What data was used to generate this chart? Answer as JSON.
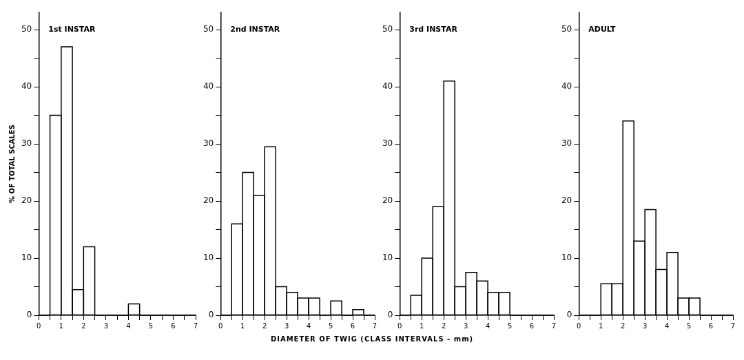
{
  "chart_data": [
    {
      "type": "histogram",
      "title": "1st INSTAR",
      "ylabel": "% OF TOTAL SCALES",
      "bins": [
        0,
        0.5,
        1,
        1.5,
        2,
        2.5,
        3,
        3.5,
        4,
        4.5,
        5,
        5.5,
        6,
        6.5,
        7
      ],
      "values": [
        0,
        35,
        47,
        4.5,
        12,
        0,
        0,
        0,
        2,
        0,
        0,
        0,
        0,
        0
      ],
      "color": "#000000",
      "xlim": [
        0,
        7
      ],
      "xticks": [
        0,
        {
          "value": 0.5,
          "label": null
        },
        1,
        {
          "value": 1.5,
          "label": null
        },
        2,
        {
          "value": 2.5,
          "label": null
        },
        3,
        {
          "value": 3.5,
          "label": null
        },
        4,
        {
          "value": 4.5,
          "label": null
        },
        5,
        {
          "value": 5.5,
          "label": null
        },
        6,
        {
          "value": 6.5,
          "label": null
        },
        7
      ],
      "ylim": [
        0,
        53
      ],
      "yticks": [
        0,
        {
          "value": 5,
          "label": null
        },
        10,
        {
          "value": 15,
          "label": null
        },
        20,
        {
          "value": 25,
          "label": null
        },
        30,
        {
          "value": 35,
          "label": null
        },
        40,
        {
          "value": 45,
          "label": null
        },
        50
      ],
      "grid": false,
      "legend": false
    },
    {
      "type": "histogram",
      "title": "2nd INSTAR",
      "xlabel": "DIAMETER OF TWIG (CLASS INTERVALS - mm)",
      "bins": [
        0,
        0.5,
        1,
        1.5,
        2,
        2.5,
        3,
        3.5,
        4,
        4.5,
        5,
        5.5,
        6,
        6.5,
        7
      ],
      "values": [
        0,
        16,
        25,
        21,
        29.5,
        5,
        4,
        3,
        3,
        0,
        2.5,
        0,
        1,
        0
      ],
      "color": "#000000",
      "xlim": [
        0,
        7
      ],
      "xticks": [
        0,
        {
          "value": 0.5,
          "label": null
        },
        1,
        {
          "value": 1.5,
          "label": null
        },
        2,
        {
          "value": 2.5,
          "label": null
        },
        3,
        {
          "value": 3.5,
          "label": null
        },
        4,
        {
          "value": 4.5,
          "label": null
        },
        5,
        {
          "value": 5.5,
          "label": null
        },
        6,
        {
          "value": 6.5,
          "label": null
        },
        7
      ],
      "ylim": [
        0,
        53
      ],
      "yticks": [
        0,
        {
          "value": 5,
          "label": null
        },
        10,
        {
          "value": 15,
          "label": null
        },
        20,
        {
          "value": 25,
          "label": null
        },
        30,
        {
          "value": 35,
          "label": null
        },
        40,
        {
          "value": 45,
          "label": null
        },
        50
      ],
      "grid": false,
      "legend": false
    },
    {
      "type": "histogram",
      "title": "3rd INSTAR",
      "bins": [
        0,
        0.5,
        1,
        1.5,
        2,
        2.5,
        3,
        3.5,
        4,
        4.5,
        5,
        5.5,
        6,
        6.5,
        7
      ],
      "values": [
        0,
        3.5,
        10,
        19,
        41,
        5,
        7.5,
        6,
        4,
        4,
        0,
        0,
        0,
        0
      ],
      "color": "#000000",
      "xlim": [
        0,
        7
      ],
      "xticks": [
        0,
        {
          "value": 0.5,
          "label": null
        },
        1,
        {
          "value": 1.5,
          "label": null
        },
        2,
        {
          "value": 2.5,
          "label": null
        },
        3,
        {
          "value": 3.5,
          "label": null
        },
        4,
        {
          "value": 4.5,
          "label": null
        },
        5,
        {
          "value": 5.5,
          "label": null
        },
        6,
        {
          "value": 6.5,
          "label": null
        },
        7
      ],
      "ylim": [
        0,
        53
      ],
      "yticks": [
        0,
        {
          "value": 5,
          "label": null
        },
        10,
        {
          "value": 15,
          "label": null
        },
        20,
        {
          "value": 25,
          "label": null
        },
        30,
        {
          "value": 35,
          "label": null
        },
        40,
        {
          "value": 45,
          "label": null
        },
        50
      ],
      "grid": false,
      "legend": false
    },
    {
      "type": "histogram",
      "title": "ADULT",
      "bins": [
        0,
        0.5,
        1,
        1.5,
        2,
        2.5,
        3,
        3.5,
        4,
        4.5,
        5,
        5.5,
        6,
        6.5,
        7
      ],
      "values": [
        0,
        0,
        5.5,
        5.5,
        34,
        13,
        18.5,
        8,
        11,
        3,
        3,
        0,
        0,
        0
      ],
      "color": "#000000",
      "xlim": [
        0,
        7
      ],
      "xticks": [
        0,
        {
          "value": 0.5,
          "label": null
        },
        1,
        {
          "value": 1.5,
          "label": null
        },
        2,
        {
          "value": 2.5,
          "label": null
        },
        3,
        {
          "value": 3.5,
          "label": null
        },
        4,
        {
          "value": 4.5,
          "label": null
        },
        5,
        {
          "value": 5.5,
          "label": null
        },
        6,
        {
          "value": 6.5,
          "label": null
        },
        7
      ],
      "ylim": [
        0,
        53
      ],
      "yticks": [
        0,
        {
          "value": 5,
          "label": null
        },
        10,
        {
          "value": 15,
          "label": null
        },
        20,
        {
          "value": 25,
          "label": null
        },
        30,
        {
          "value": 35,
          "label": null
        },
        40,
        {
          "value": 45,
          "label": null
        },
        50
      ],
      "grid": false,
      "legend": false
    }
  ]
}
